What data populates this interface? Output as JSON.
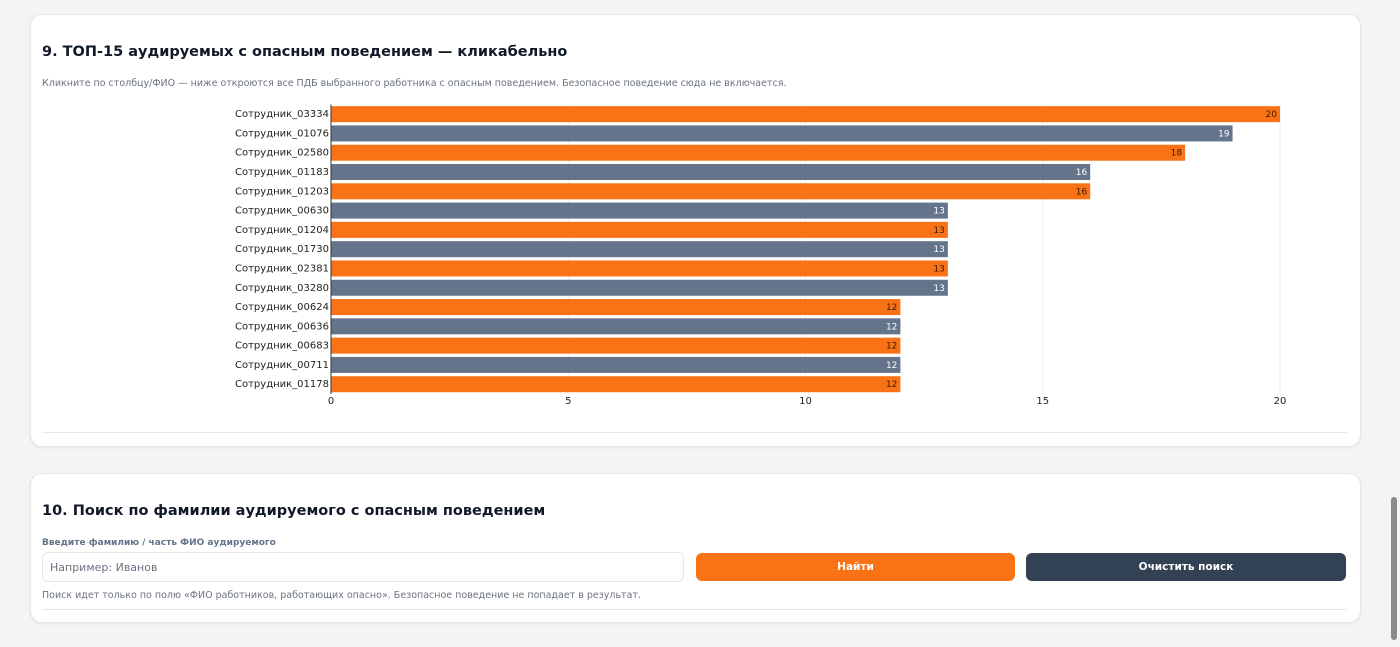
{
  "chart_data": {
    "type": "hbar",
    "title": "9. ТОП-15 аудируемых с опасным поведением — кликабельно",
    "subtitle": "Кликните по столбцу/ФИО — ниже откроются все ПДБ выбранного работника с опасным поведением. Безопасное поведение сюда не включается.",
    "categories": [
      "Сотрудник_03334",
      "Сотрудник_01076",
      "Сотрудник_02580",
      "Сотрудник_01183",
      "Сотрудник_01203",
      "Сотрудник_00630",
      "Сотрудник_01204",
      "Сотрудник_01730",
      "Сотрудник_02381",
      "Сотрудник_03280",
      "Сотрудник_00624",
      "Сотрудник_00636",
      "Сотрудник_00683",
      "Сотрудник_00711",
      "Сотрудник_01178"
    ],
    "values": [
      20,
      19,
      18,
      16,
      16,
      13,
      13,
      13,
      13,
      13,
      12,
      12,
      12,
      12,
      12
    ],
    "colors": [
      "#f97316",
      "#64748b",
      "#f97316",
      "#64748b",
      "#f97316",
      "#64748b",
      "#f97316",
      "#64748b",
      "#f97316",
      "#64748b",
      "#f97316",
      "#64748b",
      "#f97316",
      "#64748b",
      "#f97316"
    ],
    "xlim": [
      0,
      20
    ],
    "xticks": [
      0,
      5,
      10,
      15,
      20
    ],
    "grid": true
  },
  "search": {
    "title": "10. Поиск по фамилии аудируемого с опасным поведением",
    "input_label": "Введите фамилию / часть ФИО аудируемого",
    "placeholder": "Например: Иванов",
    "find_button": "Найти",
    "clear_button": "Очистить поиск",
    "note": "Поиск идет только по полю «ФИО работников, работающих опасно». Безопасное поведение не попадает в результат."
  }
}
